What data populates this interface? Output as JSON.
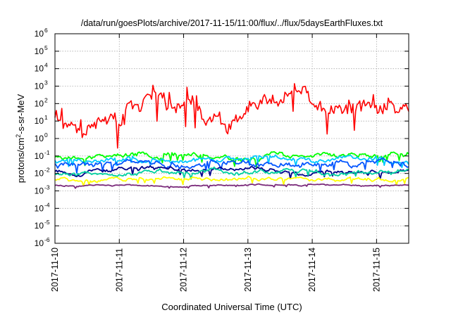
{
  "chart_data": {
    "type": "line",
    "title": "/data/run/goesPlots/archive/2017-11-15/11:00/flux/../flux/5daysEarthFluxes.txt",
    "xlabel": "Coordinated Universal Time (UTC)",
    "ylabel_parts": [
      "protons/cm",
      "2",
      "-s-sr-MeV"
    ],
    "yscale": "log",
    "ylim": [
      1e-06,
      1000000.0
    ],
    "xlim": [
      "2017-11-10",
      "2017-11-15 12:00"
    ],
    "x_ticks": [
      "2017-11-10",
      "2017-11-11",
      "2017-11-12",
      "2017-11-13",
      "2017-11-14",
      "2017-11-15"
    ],
    "y_ticks": [
      {
        "value": 1e-06,
        "base": "10",
        "exp": "-6"
      },
      {
        "value": 1e-05,
        "base": "10",
        "exp": "-5"
      },
      {
        "value": 0.0001,
        "base": "10",
        "exp": "-4"
      },
      {
        "value": 0.001,
        "base": "10",
        "exp": "-3"
      },
      {
        "value": 0.01,
        "base": "10",
        "exp": "-2"
      },
      {
        "value": 0.1,
        "base": "10",
        "exp": "-1"
      },
      {
        "value": 1,
        "base": "10",
        "exp": "0"
      },
      {
        "value": 10,
        "base": "10",
        "exp": "1"
      },
      {
        "value": 100,
        "base": "10",
        "exp": "2"
      },
      {
        "value": 1000,
        "base": "10",
        "exp": "3"
      },
      {
        "value": 10000,
        "base": "10",
        "exp": "4"
      },
      {
        "value": 100000,
        "base": "10",
        "exp": "5"
      },
      {
        "value": 1000000,
        "base": "10",
        "exp": "6"
      }
    ],
    "grid": true,
    "series": [
      {
        "color": "#ff0000",
        "baseline": 30,
        "amplitude_decades": 0.7,
        "seed": 11
      },
      {
        "color": "#00ff00",
        "baseline": 0.1,
        "amplitude_decades": 0.18,
        "seed": 23
      },
      {
        "color": "#00c8ff",
        "baseline": 0.06,
        "amplitude_decades": 0.18,
        "seed": 37
      },
      {
        "color": "#0055ff",
        "baseline": 0.035,
        "amplitude_decades": 0.2,
        "seed": 41
      },
      {
        "color": "#00008b",
        "baseline": 0.015,
        "amplitude_decades": 0.15,
        "seed": 53
      },
      {
        "color": "#00d0a0",
        "baseline": 0.009,
        "amplitude_decades": 0.16,
        "seed": 61
      },
      {
        "color": "#ffff00",
        "baseline": 0.0045,
        "amplitude_decades": 0.12,
        "seed": 71
      },
      {
        "color": "#7a2a7a",
        "baseline": 0.0021,
        "amplitude_decades": 0.05,
        "seed": 83
      }
    ]
  }
}
